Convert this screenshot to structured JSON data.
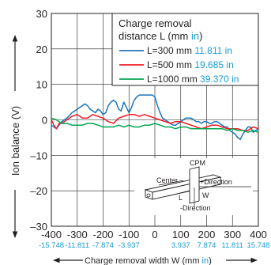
{
  "chart_data": {
    "type": "line",
    "xlabel": "Charge removal width W (mm in)",
    "xlabel_parts": {
      "main": "Charge removal width W (mm ",
      "unit": "in",
      "close": ")"
    },
    "ylabel": "Ion balance (V)",
    "xlim": [
      -400,
      400
    ],
    "ylim": [
      -30,
      30
    ],
    "grid": true,
    "legend_position": "top-right",
    "legend_title": [
      "Charge removal",
      "distance L (mm in)"
    ],
    "legend_title_parts": {
      "line1": "Charge removal",
      "line2_main": "distance L (mm ",
      "line2_unit": "in",
      "line2_close": ")"
    },
    "x_ticks_mm": [
      "-400",
      "-300",
      "-200",
      "-100",
      "0",
      "100",
      "200",
      "300",
      "400"
    ],
    "x_ticks_in": [
      "-15.748",
      "-11.811",
      "-7.874",
      "-3.937",
      "",
      "3.937",
      "7.874",
      "11.811",
      "15.748"
    ],
    "y_ticks": [
      "30",
      "20",
      "10",
      "0",
      "–10",
      "–20",
      "–30"
    ],
    "series": [
      {
        "name": "L=300 mm 11.811 in",
        "label_mm": "L=300 mm",
        "label_in": "11.811 in",
        "color": "#1b75bc",
        "x": [
          -400,
          -380,
          -360,
          -340,
          -320,
          -300,
          -290,
          -280,
          -270,
          -260,
          -250,
          -240,
          -230,
          -220,
          -210,
          -200,
          -190,
          -180,
          -170,
          -160,
          -150,
          -140,
          -130,
          -120,
          -110,
          -100,
          -90,
          -80,
          -70,
          -60,
          -50,
          -40,
          -30,
          -20,
          -10,
          0,
          10,
          20,
          30,
          40,
          50,
          60,
          70,
          80,
          90,
          100,
          110,
          120,
          130,
          140,
          150,
          160,
          170,
          180,
          190,
          200,
          210,
          220,
          230,
          240,
          250,
          260,
          270,
          280,
          290,
          300,
          310,
          320,
          330,
          340,
          350,
          360,
          370,
          380,
          390,
          400
        ],
        "y": [
          -1.5,
          -2.5,
          -0.5,
          0.5,
          2,
          3,
          3.5,
          4,
          4.5,
          4,
          3,
          2.5,
          2,
          3,
          2.5,
          1.5,
          2,
          4,
          5,
          5.5,
          5,
          3,
          2.5,
          5,
          3.5,
          2,
          3.5,
          5.5,
          6.5,
          7,
          7,
          7,
          7,
          7,
          7,
          6.5,
          4,
          2,
          0.5,
          0,
          -0.5,
          -1,
          -1.5,
          -1.5,
          -1,
          -0.5,
          0,
          0.5,
          0.5,
          0.5,
          0,
          -0.5,
          -0.5,
          -1,
          -0.5,
          -0.5,
          -1,
          -1,
          -0.5,
          -0.5,
          -1,
          -1.5,
          -2,
          -2,
          -3,
          -3.5,
          -4,
          -5,
          -5.5,
          -4,
          -3,
          -2,
          -2,
          -3.5,
          -3,
          -2.5
        ]
      },
      {
        "name": "L=500 mm 19.685 in",
        "label_mm": "L=500 mm",
        "label_in": "19.685 in",
        "color": "#ed1c24",
        "x": [
          -400,
          -390,
          -380,
          -370,
          -360,
          -350,
          -340,
          -320,
          -300,
          -280,
          -260,
          -240,
          -220,
          -200,
          -180,
          -160,
          -140,
          -120,
          -100,
          -80,
          -60,
          -40,
          -20,
          0,
          20,
          40,
          60,
          80,
          100,
          120,
          140,
          160,
          180,
          200,
          220,
          240,
          260,
          280,
          300,
          320,
          340,
          360,
          380,
          400
        ],
        "y": [
          0,
          -1.5,
          -2.5,
          -1,
          -1,
          -0.5,
          0,
          1,
          1.5,
          0.5,
          0.5,
          1.5,
          1,
          0.5,
          -0.5,
          -1,
          0.5,
          1,
          1.5,
          1.5,
          1,
          1.5,
          1,
          0.5,
          0,
          -0.5,
          -1,
          -0.5,
          -0.5,
          -1,
          -1.5,
          -2,
          -2.5,
          -2,
          -1.5,
          -1.5,
          -2,
          -2.5,
          -2.5,
          -2.5,
          -3,
          -3,
          -2,
          -2.5
        ]
      },
      {
        "name": "L=1000 mm 39.370 in",
        "label_mm": "L=1000 mm",
        "label_in": "39.370 in",
        "color": "#00a651",
        "x": [
          -400,
          -380,
          -360,
          -340,
          -320,
          -300,
          -280,
          -260,
          -240,
          -220,
          -200,
          -180,
          -160,
          -140,
          -120,
          -100,
          -80,
          -60,
          -40,
          -20,
          0,
          20,
          40,
          60,
          80,
          100,
          120,
          140,
          160,
          180,
          200,
          220,
          240,
          260,
          280,
          300,
          320,
          340,
          360,
          380,
          400
        ],
        "y": [
          0.5,
          0,
          -1,
          -1,
          -1.5,
          -1.5,
          -1.5,
          -1,
          -1,
          -1.5,
          -2,
          -2,
          -2,
          -1.5,
          -2,
          -1.5,
          -2,
          -2,
          -1.5,
          -1.5,
          -1,
          -1.5,
          -2,
          -2,
          -2.5,
          -2,
          -2,
          -2.5,
          -2.5,
          -2.5,
          -2.5,
          -2.5,
          -2.5,
          -2.5,
          -3,
          -2.5,
          -3,
          -3,
          -3.5,
          -3,
          -3.5
        ]
      }
    ],
    "inset": {
      "labels": [
        "CPM",
        "Center",
        "+Direction",
        "W",
        "L",
        "-Direction"
      ]
    }
  },
  "colors": {
    "axis": "#231f20",
    "inch_blue": "#1a9ad6"
  }
}
